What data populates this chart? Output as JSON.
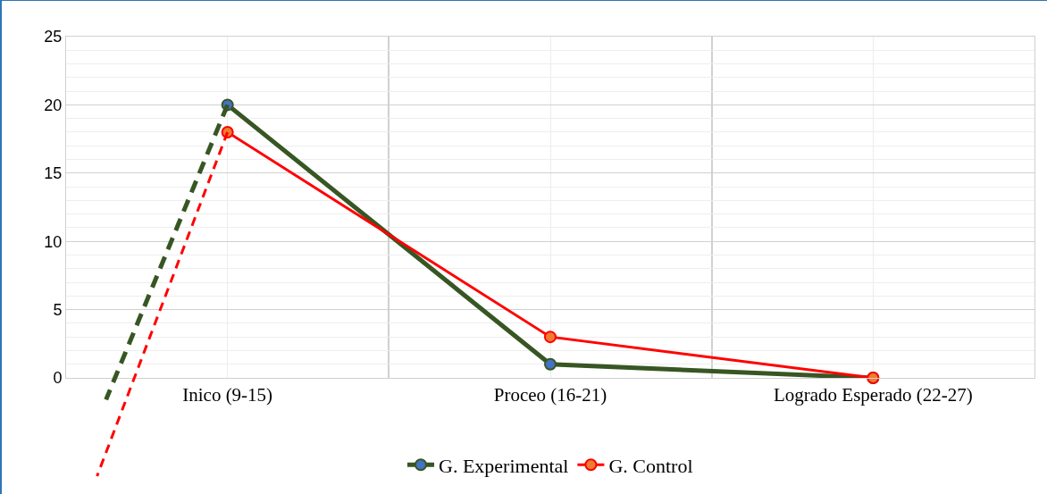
{
  "chart_data": {
    "type": "line",
    "categories": [
      "Inico (9-15)",
      "Proceo (16-21)",
      "Logrado Esperado (22-27)"
    ],
    "series": [
      {
        "name": "G. Experimental",
        "color": "#375623",
        "values": [
          20,
          1,
          0
        ]
      },
      {
        "name": "G. Control",
        "color": "#ff0000",
        "values": [
          18,
          3,
          0
        ]
      }
    ],
    "ylim": [
      0,
      25
    ],
    "yticks": [
      0,
      5,
      10,
      15,
      20,
      25
    ],
    "grid": true,
    "legend": "bottom",
    "marker": "circle",
    "line_style": "solid"
  }
}
